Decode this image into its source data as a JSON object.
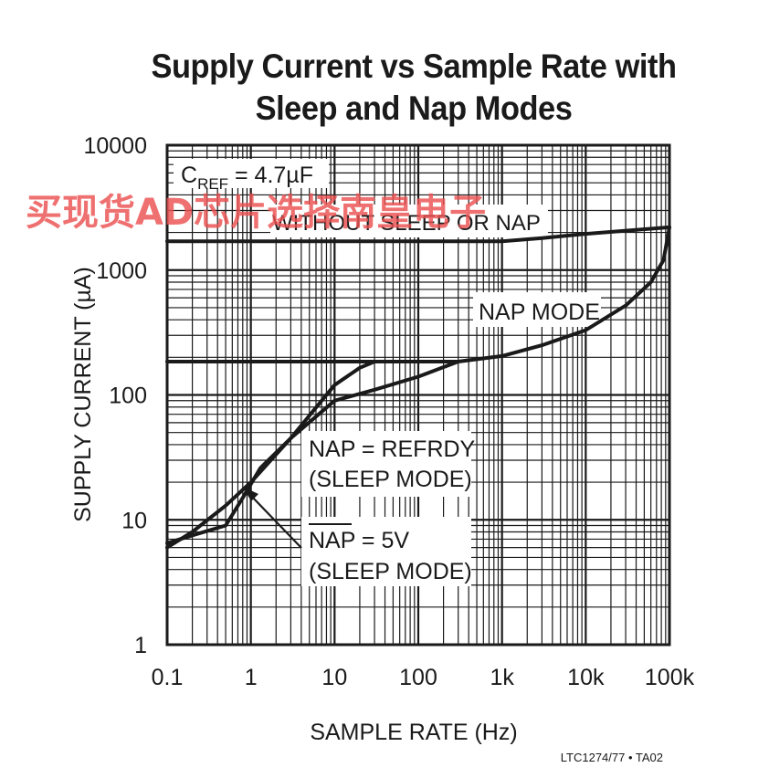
{
  "chart_data": {
    "type": "line",
    "title_lines": [
      "Supply Current vs Sample Rate with",
      "Sleep and Nap Modes"
    ],
    "xlabel": "SAMPLE RATE (Hz)",
    "ylabel": "SUPPLY CURRENT (µA)",
    "x_scale": "log",
    "y_scale": "log",
    "xlim": [
      0.1,
      100000
    ],
    "ylim": [
      1,
      10000
    ],
    "x_ticks": [
      {
        "value": 0.1,
        "label": "0.1"
      },
      {
        "value": 1,
        "label": "1"
      },
      {
        "value": 10,
        "label": "10"
      },
      {
        "value": 100,
        "label": "100"
      },
      {
        "value": 1000,
        "label": "1k"
      },
      {
        "value": 10000,
        "label": "10k"
      },
      {
        "value": 100000,
        "label": "100k"
      }
    ],
    "y_ticks": [
      {
        "value": 1,
        "label": "1"
      },
      {
        "value": 10,
        "label": "10"
      },
      {
        "value": 100,
        "label": "100"
      },
      {
        "value": 1000,
        "label": "1000"
      },
      {
        "value": 10000,
        "label": "10000"
      }
    ],
    "grid": true,
    "condition_note": {
      "main": "C",
      "sub": "REF",
      "rest": " = 4.7µF"
    },
    "series": [
      {
        "name": "WITHOUT SLEEP OR NAP",
        "points": [
          [
            0.1,
            1700
          ],
          [
            1000,
            1700
          ],
          [
            3000,
            1800
          ],
          [
            10000,
            1950
          ],
          [
            100000,
            2200
          ]
        ]
      },
      {
        "name": "NAP MODE",
        "points": [
          [
            0.1,
            185
          ],
          [
            300,
            185
          ],
          [
            1000,
            205
          ],
          [
            3000,
            250
          ],
          [
            10000,
            330
          ],
          [
            30000,
            520
          ],
          [
            60000,
            800
          ],
          [
            85000,
            1200
          ],
          [
            100000,
            2200
          ]
        ]
      },
      {
        "name": "NAP = REFRDY (SLEEP MODE)",
        "points": [
          [
            0.1,
            6
          ],
          [
            0.2,
            8
          ],
          [
            0.5,
            13
          ],
          [
            1,
            20
          ],
          [
            3,
            45
          ],
          [
            10,
            120
          ],
          [
            20,
            165
          ],
          [
            30,
            185
          ]
        ]
      },
      {
        "name": "NAP = 5V (SLEEP MODE)",
        "points": [
          [
            0.1,
            6.5
          ],
          [
            0.2,
            7.5
          ],
          [
            0.5,
            9
          ],
          [
            0.8,
            15
          ],
          [
            1.3,
            26
          ],
          [
            3,
            45
          ],
          [
            10,
            90
          ],
          [
            30,
            110
          ],
          [
            100,
            140
          ],
          [
            300,
            185
          ]
        ]
      }
    ],
    "annotations": {
      "without_sleep": "WITHOUT SLEEP OR NAP",
      "nap_mode": "NAP MODE",
      "refrdy_line1": "NAP = REFRDY",
      "refrdy_line2": "(SLEEP MODE)",
      "nap5v_nap": "NAP",
      "nap5v_rest": " = 5V",
      "nap5v_line2": "(SLEEP MODE)"
    }
  },
  "footer": "LTC1274/77 • TA02",
  "watermark": "买现货AD芯片选择南皇电子",
  "colors": {
    "curve": "#1a1a1a",
    "grid": "#1a1a1a",
    "watermark": "#eb5050"
  }
}
